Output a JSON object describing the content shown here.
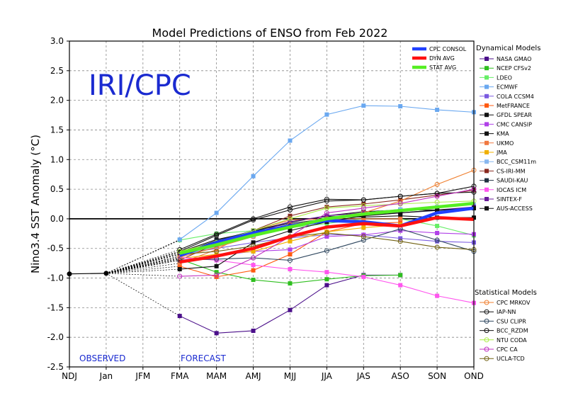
{
  "chart_data": {
    "type": "line",
    "title": "Model Predictions of ENSO from Feb 2022",
    "ylabel": "Nino3.4 SST Anomaly (°C)",
    "xlabel": "",
    "categories": [
      "NDJ",
      "Jan",
      "JFM",
      "FMA",
      "MAM",
      "AMJ",
      "MJJ",
      "JJA",
      "JAS",
      "ASO",
      "SON",
      "OND"
    ],
    "ylim": [
      -2.5,
      3.0
    ],
    "yticks": [
      "3.0",
      "2.5",
      "2.0",
      "1.5",
      "1.0",
      "0.5",
      "0.0",
      "-0.5",
      "-1.0",
      "-1.5",
      "-2.0",
      "-2.5"
    ],
    "grid": true,
    "watermark": "IRI/CPC",
    "observed_label": "OBSERVED",
    "forecast_label": "FORECAST",
    "observed": {
      "categories": [
        "NDJ",
        "Jan"
      ],
      "values": [
        -0.93,
        -0.92
      ]
    },
    "averages": [
      {
        "name": "CPC CONSOL",
        "color": "#2040ff",
        "values": [
          -0.62,
          -0.4,
          -0.24,
          -0.12,
          -0.03,
          -0.05,
          -0.12,
          0.1,
          0.18
        ]
      },
      {
        "name": "DYN AVG",
        "color": "#ff1010",
        "values": [
          -0.73,
          -0.63,
          -0.5,
          -0.3,
          -0.14,
          -0.08,
          -0.12,
          0.02,
          -0.01
        ]
      },
      {
        "name": "STAT AVG",
        "color": "#55ee22",
        "values": [
          -0.58,
          -0.44,
          -0.28,
          -0.14,
          0.0,
          0.08,
          0.14,
          0.2,
          0.26
        ]
      }
    ],
    "dynamical_title": "Dynamical Models",
    "dynamical": [
      {
        "name": "NASA GMAO",
        "color": "#4b0f8a",
        "values": [
          -1.64,
          -1.93,
          -1.89,
          -1.54,
          -1.12,
          -0.95,
          -0.95,
          null,
          null
        ]
      },
      {
        "name": "NCEP CFSv2",
        "color": "#2fbf1f",
        "values": [
          -0.68,
          -0.9,
          -1.03,
          -1.09,
          -1.02,
          -0.96,
          -0.95,
          null,
          null
        ]
      },
      {
        "name": "LDEO",
        "color": "#66ee66",
        "values": [
          -0.36,
          -0.25,
          -0.2,
          -0.15,
          -0.08,
          0.0,
          0.0,
          -0.12,
          -0.28
        ]
      },
      {
        "name": "ECMWF",
        "color": "#6aa8f0",
        "values": [
          -0.35,
          0.1,
          0.72,
          1.32,
          1.76,
          1.91,
          1.9,
          1.84,
          1.8
        ]
      },
      {
        "name": "COLA CCSM4",
        "color": "#7a5ae0",
        "values": [
          -0.6,
          -0.5,
          -0.4,
          -0.32,
          -0.27,
          -0.27,
          -0.33,
          -0.38,
          -0.4
        ]
      },
      {
        "name": "MetFRANCE",
        "color": "#ff5a10",
        "values": [
          -0.8,
          -0.98,
          -0.87,
          -0.6,
          -0.22,
          -0.08,
          -0.06,
          null,
          null
        ]
      },
      {
        "name": "GFDL SPEAR",
        "color": "#111111",
        "values": [
          -0.56,
          -0.35,
          -0.22,
          -0.05,
          0.04,
          0.03,
          0.05,
          0.02,
          0.02
        ]
      },
      {
        "name": "CMC CANSIP",
        "color": "#b040e8",
        "values": [
          -0.7,
          -0.62,
          -0.55,
          -0.52,
          -0.3,
          -0.27,
          -0.2,
          -0.24,
          -0.26
        ]
      },
      {
        "name": "KMA",
        "color": "#111111",
        "values": [
          -0.63,
          -0.4,
          -0.2,
          -0.06,
          0.05,
          0.12,
          0.15,
          0.15,
          0.18
        ]
      },
      {
        "name": "UKMO",
        "color": "#f07840",
        "values": [
          -0.75,
          -0.52,
          -0.2,
          -0.02,
          0.0,
          0.0,
          0.0,
          null,
          null
        ]
      },
      {
        "name": "JMA",
        "color": "#f0b000",
        "values": [
          -0.67,
          -0.6,
          -0.55,
          -0.38,
          -0.22,
          -0.15,
          -0.1,
          null,
          null
        ]
      },
      {
        "name": "BCC_CSM11m",
        "color": "#88b8f0",
        "values": [
          -0.63,
          -0.47,
          -0.3,
          -0.12,
          0.0,
          0.1,
          0.16,
          0.2,
          0.24
        ]
      },
      {
        "name": "CS-IRI-MM",
        "color": "#8a2a20",
        "values": [
          -0.7,
          -0.42,
          -0.2,
          0.05,
          0.2,
          0.25,
          0.32,
          0.4,
          0.48
        ]
      },
      {
        "name": "SAUDI-KAU",
        "color": "#203040",
        "values": [
          -0.58,
          -0.37,
          -0.2,
          -0.08,
          0.0,
          0.06,
          0.1,
          0.14,
          0.18
        ]
      },
      {
        "name": "IOCAS ICM",
        "color": "#ff55ee",
        "values": [
          -0.65,
          -0.7,
          -0.78,
          -0.85,
          -0.9,
          -0.98,
          -1.12,
          -1.3,
          -1.42
        ]
      },
      {
        "name": "SINTEX-F",
        "color": "#6a1a9a",
        "values": [
          -0.58,
          -0.45,
          -0.25,
          -0.05,
          0.05,
          0.1,
          0.1,
          0.15,
          0.2
        ]
      },
      {
        "name": "AUS-ACCESS",
        "color": "#111111",
        "values": [
          -0.85,
          -0.8,
          -0.4,
          -0.2,
          -0.05,
          0.05,
          0.1,
          0.15,
          0.18
        ]
      }
    ],
    "statistical_title": "Statistical Models",
    "statistical": [
      {
        "name": "CPC MRKOV",
        "color": "#f08030",
        "values": [
          -0.65,
          -0.48,
          -0.3,
          -0.1,
          0.0,
          0.1,
          0.3,
          0.58,
          0.82
        ]
      },
      {
        "name": "IAP-NN",
        "color": "#111111",
        "values": [
          -0.55,
          -0.28,
          -0.02,
          0.15,
          0.3,
          0.32,
          0.38,
          0.43,
          0.55
        ]
      },
      {
        "name": "CSU CLIPR",
        "color": "#304860",
        "values": [
          -0.7,
          -0.68,
          -0.66,
          -0.7,
          -0.54,
          -0.36,
          -0.17,
          -0.36,
          -0.55
        ]
      },
      {
        "name": "BCC_RZDM",
        "color": "#111111",
        "values": [
          -0.52,
          -0.26,
          0.0,
          0.2,
          0.33,
          0.32,
          0.38,
          0.43,
          0.45
        ]
      },
      {
        "name": "NTU CODA",
        "color": "#aaee44",
        "values": [
          -0.55,
          -0.4,
          -0.2,
          0.0,
          0.18,
          0.22,
          0.25,
          0.28,
          0.3
        ]
      },
      {
        "name": "CPC CA",
        "color": "#c030c0",
        "values": [
          -0.97,
          -0.95,
          -0.66,
          -0.3,
          0.1,
          0.18,
          0.26,
          0.38,
          0.5
        ]
      },
      {
        "name": "UCLA-TCD",
        "color": "#706010",
        "values": [
          -0.6,
          -0.55,
          -0.46,
          -0.3,
          -0.24,
          -0.3,
          -0.38,
          -0.48,
          -0.52
        ]
      }
    ]
  }
}
